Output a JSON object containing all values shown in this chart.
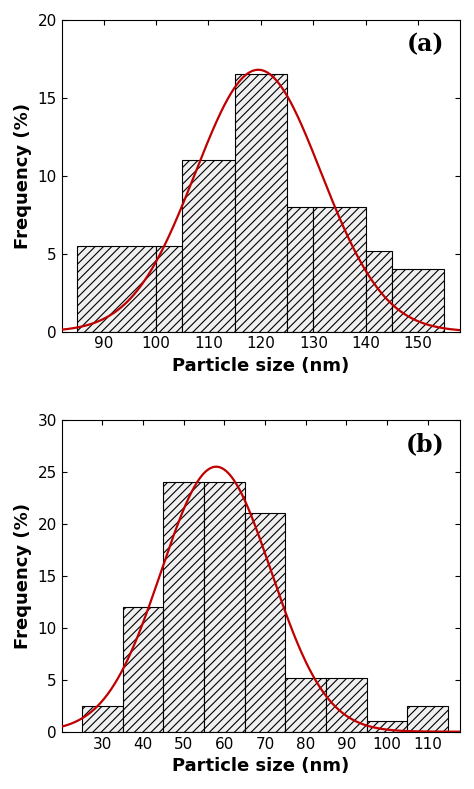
{
  "panel_a": {
    "label": "(a)",
    "bar_edges": [
      85,
      100,
      105,
      115,
      125,
      130,
      140,
      145,
      155
    ],
    "bar_heights": [
      5.5,
      5.5,
      11.0,
      16.5,
      8.0,
      8.0,
      5.2,
      4.0
    ],
    "xlim": [
      82,
      158
    ],
    "ylim": [
      0,
      20
    ],
    "xticks": [
      90,
      100,
      110,
      120,
      130,
      140,
      150
    ],
    "yticks": [
      0,
      5,
      10,
      15,
      20
    ],
    "xlabel": "Particle size (nm)",
    "ylabel": "Frequency (%)",
    "gauss_mean": 119.5,
    "gauss_std": 12.0,
    "gauss_amp": 16.8
  },
  "panel_b": {
    "label": "(b)",
    "bar_edges": [
      25,
      35,
      45,
      55,
      65,
      75,
      85,
      95,
      105,
      115
    ],
    "bar_heights": [
      2.5,
      12.0,
      24.0,
      24.0,
      21.0,
      5.2,
      5.2,
      1.0,
      2.5
    ],
    "xlim": [
      20,
      118
    ],
    "ylim": [
      0,
      30
    ],
    "xticks": [
      30,
      40,
      50,
      60,
      70,
      80,
      90,
      100,
      110
    ],
    "yticks": [
      0,
      5,
      10,
      15,
      20,
      25,
      30
    ],
    "xlabel": "Particle size (nm)",
    "ylabel": "Frequency (%)",
    "gauss_mean": 58.0,
    "gauss_std": 13.5,
    "gauss_amp": 25.5
  },
  "bar_facecolor": "#f0f0f0",
  "bar_edgecolor": "#000000",
  "hatch": "////",
  "hatch_color": "#aaaaaa",
  "curve_color": "#c00000",
  "curve_linewidth": 1.6,
  "tick_fontsize": 11,
  "axis_label_fontsize": 13,
  "panel_label_fontsize": 17
}
